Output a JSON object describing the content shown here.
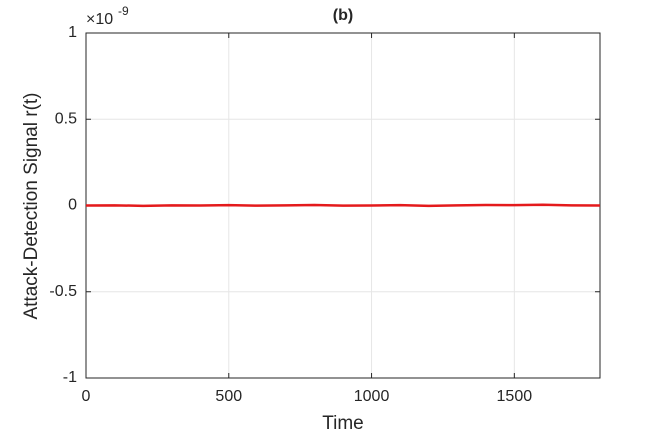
{
  "chart_data": {
    "type": "line",
    "title": "(b)",
    "x_label": "Time",
    "y_label": "Attack-Detection Signal r(t)",
    "y_exponent_label": {
      "base": "×10",
      "exponent": "-9"
    },
    "x": [
      0,
      100,
      200,
      300,
      400,
      500,
      600,
      700,
      800,
      900,
      1000,
      1100,
      1200,
      1300,
      1400,
      1500,
      1600,
      1700,
      1800
    ],
    "series": [
      {
        "name": "r(t)",
        "color": "#e41a1c",
        "values": [
          0,
          0.001,
          -0.002,
          0.001,
          0,
          0.002,
          -0.001,
          0.001,
          0.003,
          -0.001,
          0,
          0.002,
          -0.002,
          0.001,
          0.003,
          0.002,
          0.004,
          0.001,
          0
        ]
      }
    ],
    "xlim": [
      0,
      1800
    ],
    "xticks": [
      0,
      500,
      1000,
      1500
    ],
    "ylim": [
      -1,
      1
    ],
    "yticks": [
      -1,
      -0.5,
      0,
      0.5,
      1
    ],
    "grid": true
  }
}
